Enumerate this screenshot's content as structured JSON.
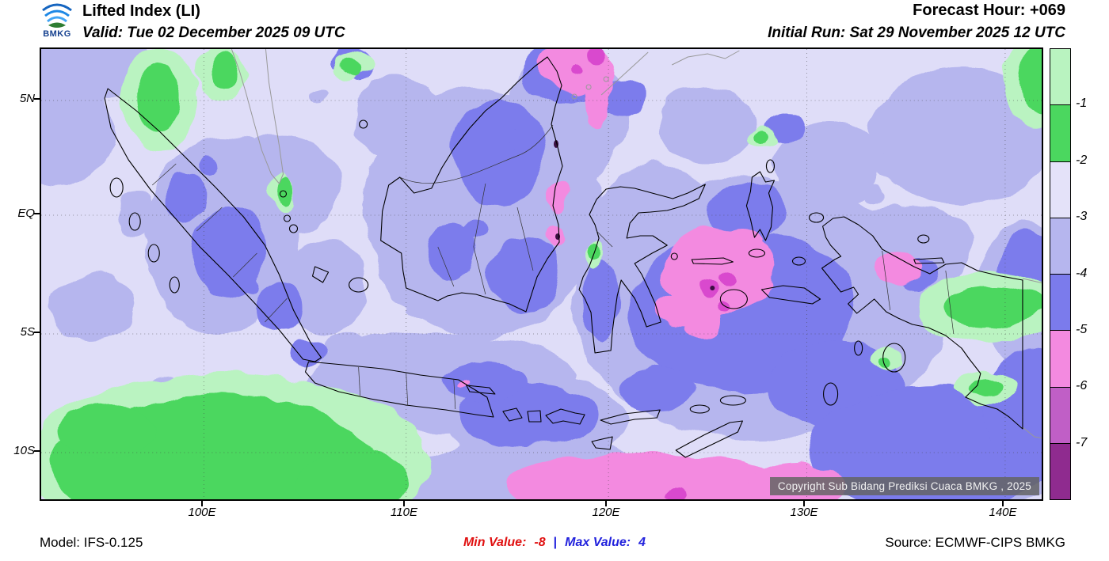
{
  "header": {
    "logo_text": "BMKG",
    "title": "Lifted Index (LI)",
    "valid_line": "Valid: Tue 02 December 2025 09 UTC",
    "forecast_hour": "Forecast Hour: +069",
    "initial_run": "Initial Run: Sat 29 November 2025 12 UTC"
  },
  "map": {
    "y_axis_labels": [
      "5N",
      "EQ",
      "5S",
      "10S"
    ],
    "x_axis_labels": [
      "100E",
      "110E",
      "120E",
      "130E",
      "140E"
    ],
    "copyright": "Copyright Sub Bidang Prediksi Cuaca BMKG , 2025"
  },
  "legend": {
    "tick_labels": [
      "-1",
      "-2",
      "-3",
      "-4",
      "-5",
      "-6",
      "-7"
    ],
    "segment_colors": [
      "#b9f3c0",
      "#4bd75f",
      "#e4e2f9",
      "#b6b6ee",
      "#7b7bec",
      "#f38ae0",
      "#c05fc6",
      "#8f2b8f"
    ]
  },
  "footer": {
    "model": "Model: IFS-0.125",
    "min_label": "Min Value:",
    "min_value": "-8",
    "separator": "|",
    "max_label": "Max Value:",
    "max_value": "4",
    "source": "Source: ECMWF-CIPS BMKG",
    "min_color": "#e01010",
    "max_color": "#2222dd"
  }
}
